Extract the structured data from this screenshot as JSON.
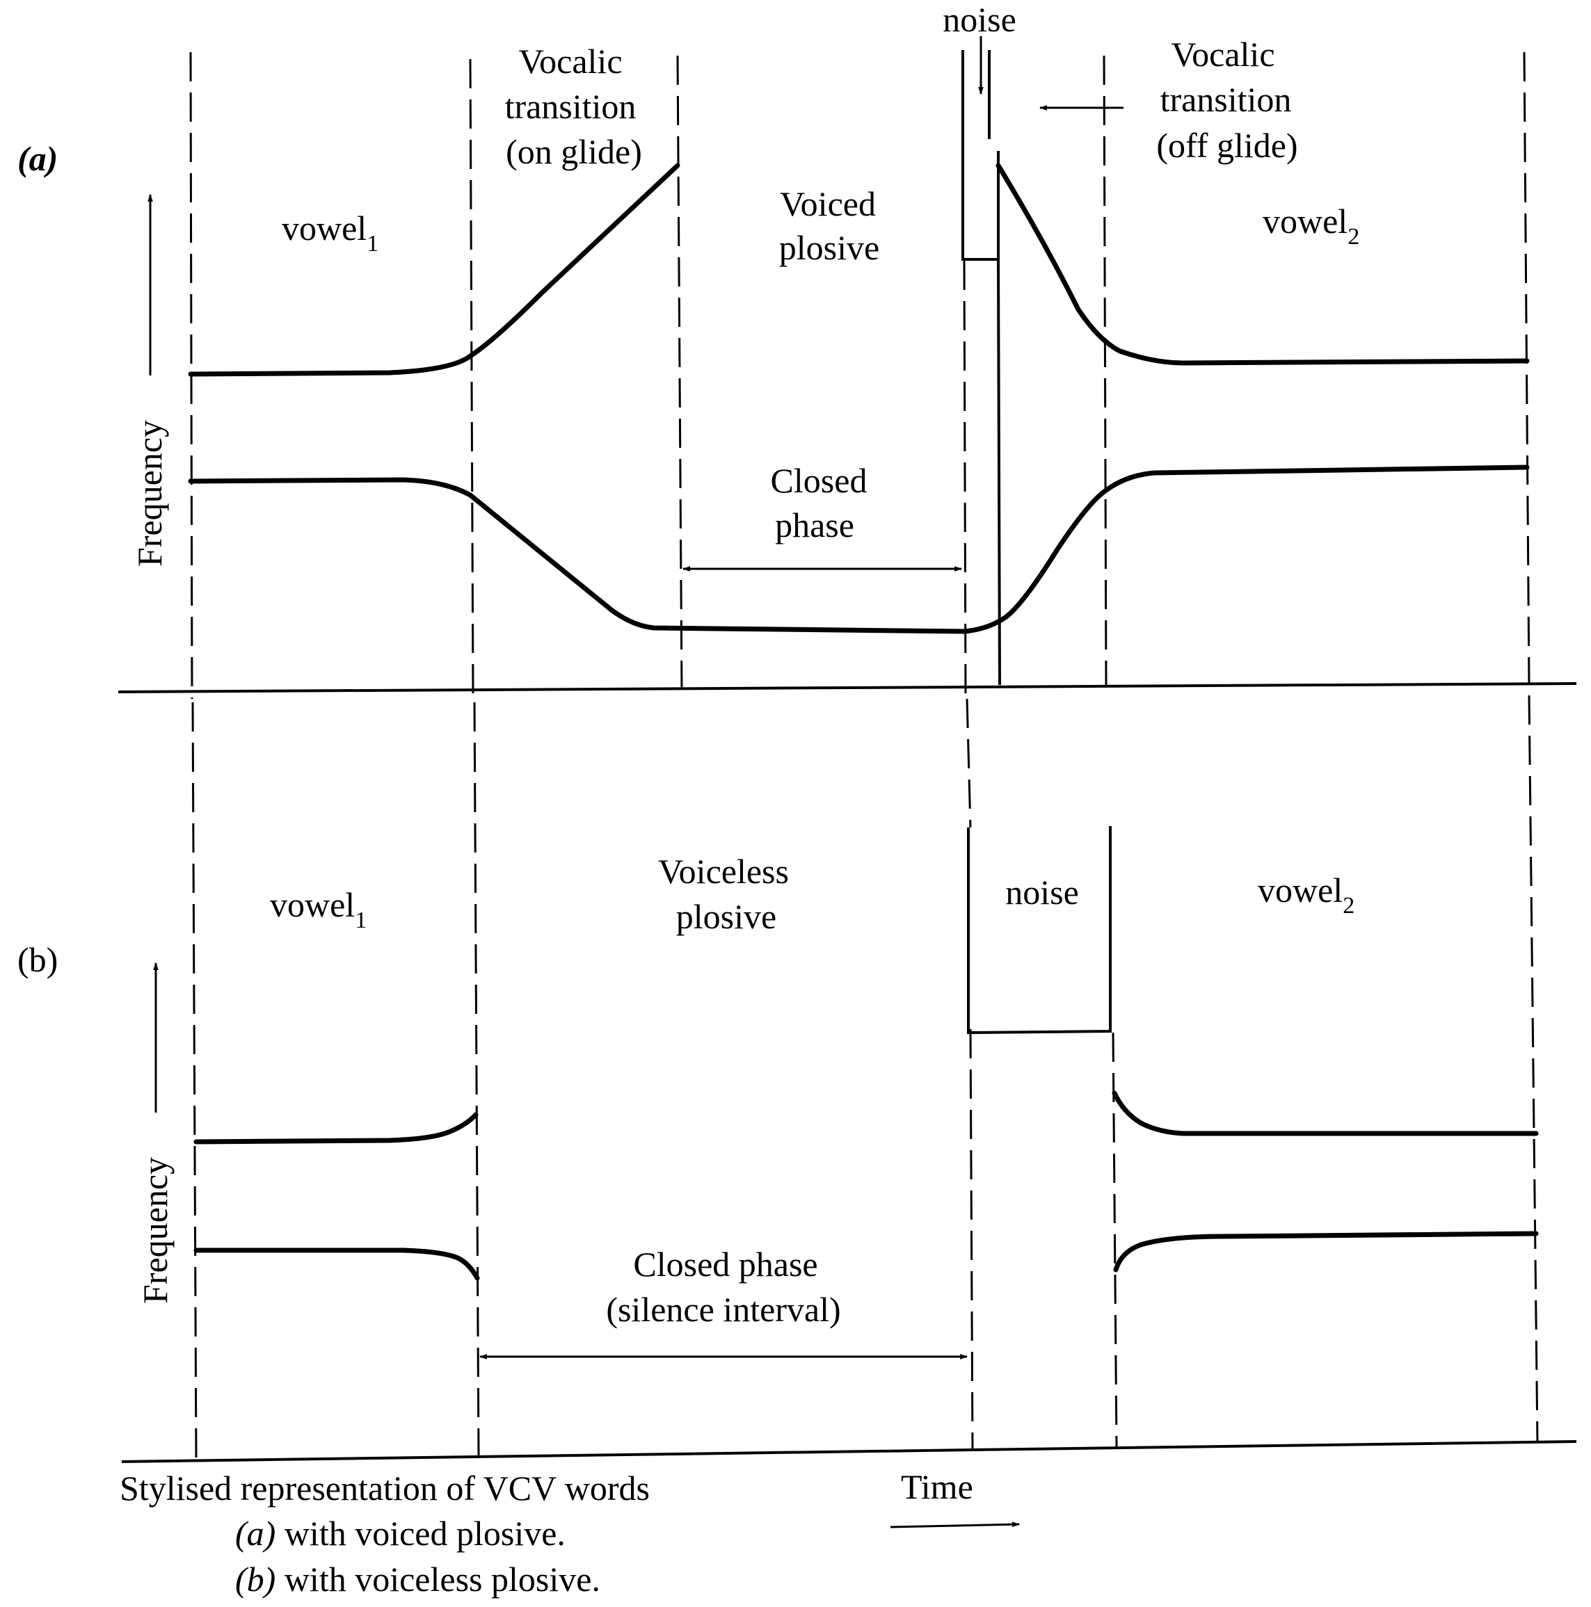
{
  "panel_a": {
    "tag": "(a)",
    "ylabel": "Frequency",
    "vowel1": "vowel",
    "vowel1_sub": "1",
    "vowel2": "vowel",
    "vowel2_sub": "2",
    "on_glide": [
      "Vocalic",
      "transition",
      "(on glide)"
    ],
    "voiced_plosive": [
      "Voiced",
      "plosive"
    ],
    "noise": "noise",
    "off_glide": [
      "Vocalic",
      "transition",
      "(off glide)"
    ],
    "closed_phase": [
      "Closed",
      "phase"
    ]
  },
  "panel_b": {
    "tag": "(b)",
    "ylabel": "Frequency",
    "vowel1": "vowel",
    "vowel1_sub": "1",
    "vowel2": "vowel",
    "vowel2_sub": "2",
    "voiceless_plosive": [
      "Voiceless",
      "plosive"
    ],
    "noise": "noise",
    "closed_phase": [
      "Closed phase",
      "(silence interval)"
    ]
  },
  "caption": {
    "line1": "Stylised representation of VCV words",
    "line2_tag": "(a)",
    "line2_text": "with voiced plosive.",
    "line3_tag": "(b)",
    "line3_text": "with voiceless plosive."
  },
  "xlabel": "Time"
}
